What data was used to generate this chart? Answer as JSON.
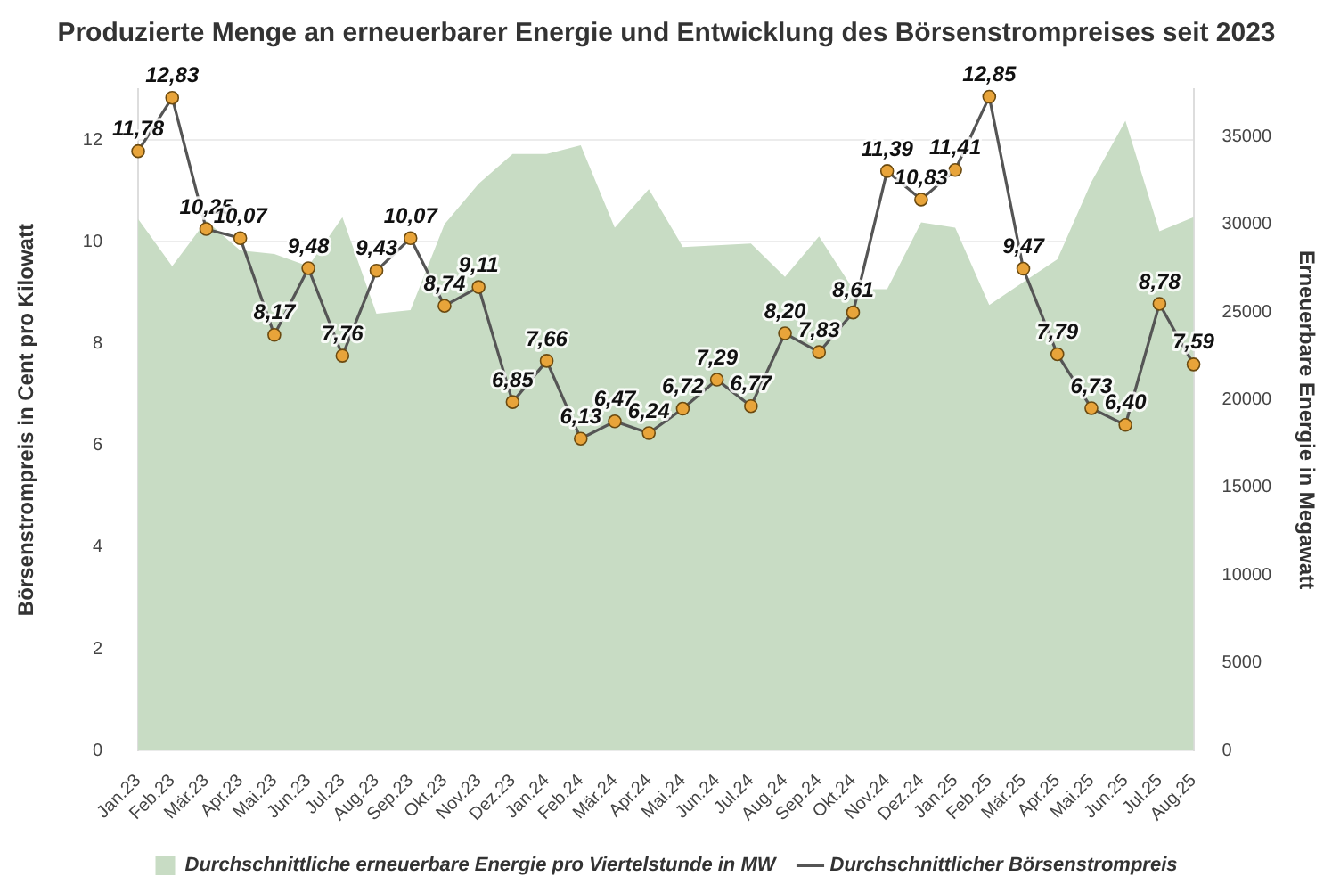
{
  "chart_data": {
    "type": "line",
    "title": "Produzierte Menge an erneuerbarer Energie und Entwicklung des Börsenstrompreises seit 2023",
    "ylabel": "Börsenstrompreis in Cent pro Kilowatt",
    "y2label": "Erneuerbare Energie in Megawatt",
    "categories": [
      "Jan.23",
      "Feb.23",
      "Mär.23",
      "Apr.23",
      "Mai.23",
      "Jun.23",
      "Jul.23",
      "Aug.23",
      "Sep.23",
      "Okt.23",
      "Nov.23",
      "Dez.23",
      "Jan.24",
      "Feb.24",
      "Mär.24",
      "Apr.24",
      "Mai.24",
      "Jun.24",
      "Jul.24",
      "Aug.24",
      "Sep.24",
      "Okt.24",
      "Nov.24",
      "Dez.24",
      "Jan.25",
      "Feb.25",
      "Mär.25",
      "Apr.25",
      "Mai.25",
      "Jun.25",
      "Jul.25",
      "Aug.25"
    ],
    "series": [
      {
        "name": "Durchschnittliche erneuerbare Energie pro Viertelstunde in MW",
        "type": "area",
        "axis": "y2",
        "color": "#c8dcc4",
        "values": [
          30300,
          27600,
          30200,
          28500,
          28300,
          27600,
          30400,
          24900,
          25100,
          30000,
          32300,
          34000,
          34000,
          34500,
          29800,
          32000,
          28700,
          28800,
          28900,
          27000,
          29300,
          26300,
          26300,
          30100,
          29800,
          25400,
          26700,
          28000,
          32400,
          35900,
          29600,
          30400
        ]
      },
      {
        "name": "Durchschnittlicher Börsenstrompreis",
        "type": "line",
        "axis": "y",
        "color": "#555555",
        "marker": "circle",
        "values": [
          11.78,
          12.83,
          10.25,
          10.07,
          8.17,
          9.48,
          7.76,
          9.43,
          10.07,
          8.74,
          9.11,
          6.85,
          7.66,
          6.13,
          6.47,
          6.24,
          6.72,
          7.29,
          6.77,
          8.2,
          7.83,
          8.61,
          11.39,
          10.83,
          11.41,
          12.85,
          9.47,
          7.79,
          6.73,
          6.4,
          8.78,
          7.59
        ],
        "value_labels": [
          "11,78",
          "12,83",
          "10,25",
          "10,07",
          "8,17",
          "9,48",
          "7,76",
          "9,43",
          "10,07",
          "8,74",
          "9,11",
          "6,85",
          "7,66",
          "6,13",
          "6,47",
          "6,24",
          "6,72",
          "7,29",
          "6,77",
          "8,20",
          "7,83",
          "8,61",
          "11,39",
          "10,83",
          "11,41",
          "12,85",
          "9,47",
          "7,79",
          "6,73",
          "6,40",
          "8,78",
          "7,59"
        ]
      }
    ],
    "ylim": [
      0,
      13
    ],
    "yticks": [
      0,
      2,
      4,
      6,
      8,
      10,
      12
    ],
    "y2lim": [
      0,
      37700
    ],
    "y2ticks": [
      0,
      5000,
      10000,
      15000,
      20000,
      25000,
      30000,
      35000
    ],
    "grid": "y",
    "legend": "bottom"
  }
}
